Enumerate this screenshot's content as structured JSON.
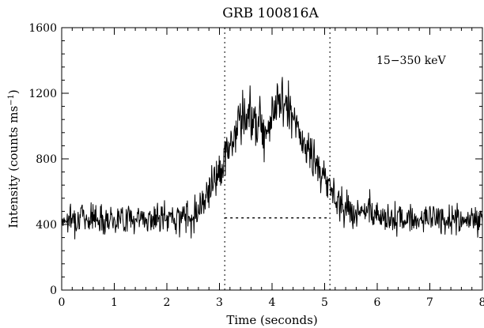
{
  "chart_data": {
    "type": "line",
    "title": "GRB 100816A",
    "xlabel": "Time (seconds)",
    "ylabel_main": "Intensity (counts ms",
    "ylabel_sup": "−1",
    "ylabel_tail": ")",
    "annotation": "15−350 keV",
    "xlim": [
      0,
      8
    ],
    "ylim": [
      0,
      1600
    ],
    "x_ticks": [
      0,
      1,
      2,
      3,
      4,
      5,
      6,
      7,
      8
    ],
    "x_tick_labels": [
      "0",
      "1",
      "2",
      "3",
      "4",
      "5",
      "6",
      "7",
      "8"
    ],
    "y_ticks": [
      0,
      400,
      800,
      1200,
      1600
    ],
    "y_tick_labels": [
      "0",
      "400",
      "800",
      "1200",
      "1600"
    ],
    "vertical_lines": [
      3.1,
      5.1
    ],
    "baseline_level": 440,
    "grid": false,
    "series": [
      {
        "x": [
          0.0,
          0.25,
          0.5,
          0.75,
          1.0,
          1.25,
          1.5,
          1.75,
          2.0,
          2.25,
          2.5,
          2.6,
          2.7,
          2.8,
          2.9,
          3.0,
          3.1,
          3.2,
          3.3,
          3.4,
          3.5,
          3.6,
          3.7,
          3.8,
          3.9,
          4.0,
          4.1,
          4.2,
          4.3,
          4.4,
          4.5,
          4.6,
          4.7,
          4.8,
          4.9,
          5.0,
          5.1,
          5.2,
          5.3,
          5.4,
          5.5,
          5.75,
          6.0,
          6.25,
          6.5,
          6.75,
          7.0,
          7.25,
          7.5,
          7.75,
          8.0
        ],
        "y": [
          430,
          440,
          445,
          440,
          435,
          440,
          438,
          430,
          440,
          445,
          455,
          500,
          560,
          620,
          680,
          740,
          800,
          880,
          960,
          1030,
          1060,
          1060,
          1050,
          1010,
          990,
          1080,
          1120,
          1150,
          1120,
          1050,
          960,
          880,
          840,
          800,
          720,
          680,
          630,
          570,
          530,
          500,
          480,
          470,
          460,
          440,
          430,
          435,
          440,
          430,
          430,
          420,
          430
        ]
      }
    ]
  }
}
